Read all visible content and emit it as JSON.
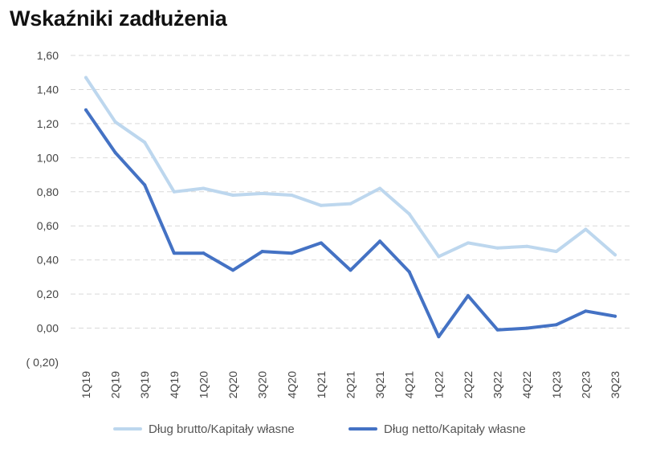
{
  "title": "Wskaźniki zadłużenia",
  "chart_data": {
    "type": "line",
    "title": "Wskaźniki zadłużenia",
    "xlabel": "",
    "ylabel": "",
    "categories": [
      "1Q19",
      "2Q19",
      "3Q19",
      "4Q19",
      "1Q20",
      "2Q20",
      "3Q20",
      "4Q20",
      "1Q21",
      "2Q21",
      "3Q21",
      "4Q21",
      "1Q22",
      "2Q22",
      "3Q22",
      "4Q22",
      "1Q23",
      "2Q23",
      "3Q23"
    ],
    "y_ticks": [
      "1,60",
      "1,40",
      "1,20",
      "1,00",
      "0,80",
      "0,60",
      "0,40",
      "0,20",
      "0,00",
      "( 0,20)"
    ],
    "y_tick_values": [
      1.6,
      1.4,
      1.2,
      1.0,
      0.8,
      0.6,
      0.4,
      0.2,
      0.0,
      -0.2
    ],
    "ylim": [
      -0.2,
      1.6
    ],
    "grid": true,
    "legend_position": "bottom",
    "series": [
      {
        "name": "Dług brutto/Kapitały własne",
        "color": "#bdd7ee",
        "values": [
          1.47,
          1.21,
          1.09,
          0.8,
          0.82,
          0.78,
          0.79,
          0.78,
          0.72,
          0.73,
          0.82,
          0.67,
          0.42,
          0.5,
          0.47,
          0.48,
          0.45,
          0.58,
          0.43
        ]
      },
      {
        "name": "Dług netto/Kapitały własne",
        "color": "#4472c4",
        "values": [
          1.28,
          1.03,
          0.84,
          0.44,
          0.44,
          0.34,
          0.45,
          0.44,
          0.5,
          0.34,
          0.51,
          0.33,
          -0.05,
          0.19,
          -0.01,
          0.0,
          0.02,
          0.1,
          0.07
        ]
      }
    ],
    "colors": {
      "negative_tick": "#c00000",
      "grid": "#d9d9d9",
      "tick": "#444444"
    }
  }
}
